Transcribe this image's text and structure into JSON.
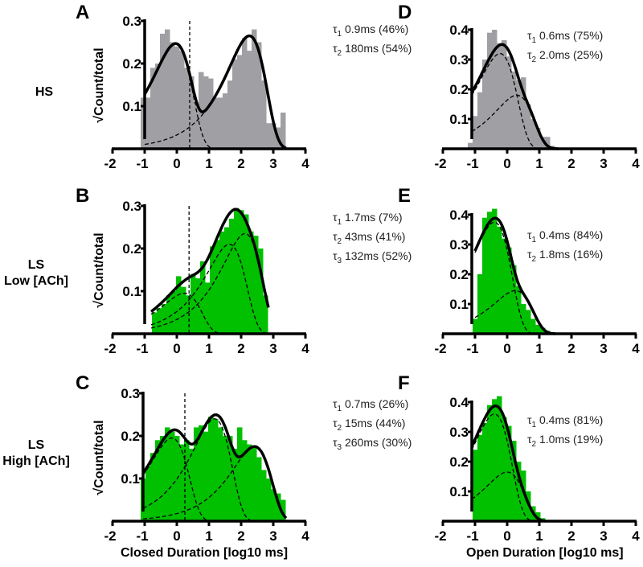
{
  "row_labels": {
    "hs": "HS",
    "ls_low_1": "LS",
    "ls_low_2": "Low [ACh]",
    "ls_high_1": "LS",
    "ls_high_2": "High [ACh]"
  },
  "colors": {
    "hs_bars": "#a0a0a4",
    "ls_bars": "#00c000",
    "fit": "#000000"
  },
  "chart_data": [
    {
      "panel": "A",
      "type": "bar",
      "ylabel": "√Count/total",
      "xlabel": "",
      "xlim": [
        -2,
        4
      ],
      "ylim": [
        0,
        0.3
      ],
      "xticks": [
        "-2",
        "-1",
        "0",
        "1",
        "2",
        "3",
        "4"
      ],
      "yticks": [
        "0.1",
        "0.2",
        "0.3"
      ],
      "bar_color": "#a0a0a4",
      "tcrit_log": 0.4,
      "bins": [
        -1.05,
        -0.9,
        -0.75,
        -0.6,
        -0.45,
        -0.3,
        -0.15,
        0,
        0.15,
        0.3,
        0.45,
        0.6,
        0.75,
        0.9,
        1.05,
        1.2,
        1.35,
        1.5,
        1.65,
        1.8,
        1.95,
        2.1,
        2.25,
        2.4,
        2.55,
        2.7,
        2.85,
        3.0,
        3.15,
        3.3
      ],
      "values": [
        0.12,
        0.12,
        0.19,
        0.2,
        0.27,
        0.28,
        0.25,
        0.24,
        0.23,
        0.19,
        0.17,
        0.1,
        0.18,
        0.17,
        0.165,
        0.12,
        0.12,
        0.13,
        0.16,
        0.21,
        0.22,
        0.26,
        0.23,
        0.28,
        0.25,
        0.16,
        0.06,
        0.06,
        0.05,
        0.085
      ],
      "fit_range": [
        -1.0,
        3.4
      ],
      "components": [
        {
          "label": "τ",
          "sub": "1",
          "tau": "0.9ms",
          "pct": "(46%)",
          "tau_ms": 0.9,
          "peak": 0.245
        },
        {
          "label": "τ",
          "sub": "2",
          "tau": "180ms",
          "pct": "(54%)",
          "tau_ms": 180,
          "peak": 0.265
        }
      ]
    },
    {
      "panel": "B",
      "type": "bar",
      "ylabel": "√Count/total",
      "xlabel": "",
      "xlim": [
        -2,
        4
      ],
      "ylim": [
        0,
        0.3
      ],
      "xticks": [
        "-2",
        "-1",
        "0",
        "1",
        "2",
        "3",
        "4"
      ],
      "yticks": [
        "0.1",
        "0.2",
        "0.3"
      ],
      "bar_color": "#00c000",
      "tcrit_log": 0.38,
      "bins": [
        -0.7,
        -0.55,
        -0.4,
        -0.25,
        -0.1,
        0.05,
        0.2,
        0.35,
        0.5,
        0.65,
        0.8,
        0.95,
        1.1,
        1.25,
        1.4,
        1.55,
        1.7,
        1.85,
        2.0,
        2.15,
        2.3,
        2.45,
        2.6,
        2.75
      ],
      "values": [
        0.05,
        0.06,
        0.07,
        0.09,
        0.1,
        0.135,
        0.11,
        0.09,
        0.14,
        0.13,
        0.17,
        0.12,
        0.205,
        0.22,
        0.24,
        0.25,
        0.27,
        0.295,
        0.29,
        0.28,
        0.24,
        0.23,
        0.2,
        0.09
      ],
      "fit_range": [
        -0.8,
        2.85
      ],
      "components": [
        {
          "label": "τ",
          "sub": "1",
          "tau": "1.7ms",
          "pct": "(7%)",
          "tau_ms": 1.7,
          "peak": 0.095
        },
        {
          "label": "τ",
          "sub": "2",
          "tau": "43ms",
          "pct": "(41%)",
          "tau_ms": 43,
          "peak": 0.21
        },
        {
          "label": "τ",
          "sub": "3",
          "tau": "132ms",
          "pct": "(52%)",
          "tau_ms": 132,
          "peak": 0.235
        }
      ]
    },
    {
      "panel": "C",
      "type": "bar",
      "ylabel": "√Count/total",
      "xlabel": "Closed Duration [log10 ms]",
      "xlim": [
        -2,
        4
      ],
      "ylim": [
        0,
        0.3
      ],
      "xticks": [
        "-2",
        "-1",
        "0",
        "1",
        "2",
        "3",
        "4"
      ],
      "yticks": [
        "0.1",
        "0.2",
        "0.3"
      ],
      "bar_color": "#00c000",
      "tcrit_log": 0.25,
      "bins": [
        -1.05,
        -0.9,
        -0.75,
        -0.6,
        -0.45,
        -0.3,
        -0.15,
        0,
        0.15,
        0.3,
        0.45,
        0.6,
        0.75,
        0.9,
        1.05,
        1.2,
        1.35,
        1.5,
        1.65,
        1.8,
        1.95,
        2.1,
        2.25,
        2.4,
        2.55,
        2.7,
        2.85,
        3.0,
        3.15,
        3.3
      ],
      "values": [
        0.1,
        0.13,
        0.16,
        0.19,
        0.2,
        0.22,
        0.21,
        0.2,
        0.18,
        0.19,
        0.17,
        0.22,
        0.225,
        0.21,
        0.245,
        0.24,
        0.22,
        0.2,
        0.2,
        0.17,
        0.22,
        0.19,
        0.18,
        0.175,
        0.15,
        0.12,
        0.1,
        0.075,
        0.065,
        0.05
      ],
      "fit_range": [
        -1.05,
        3.4
      ],
      "components": [
        {
          "label": "τ",
          "sub": "1",
          "tau": "0.7ms",
          "pct": "(26%)",
          "tau_ms": 0.7,
          "peak": 0.195
        },
        {
          "label": "τ",
          "sub": "2",
          "tau": "15ms",
          "pct": "(44%)",
          "tau_ms": 15,
          "peak": 0.24
        },
        {
          "label": "τ",
          "sub": "3",
          "tau": "260ms",
          "pct": "(30%)",
          "tau_ms": 260,
          "peak": 0.175
        }
      ]
    },
    {
      "panel": "D",
      "type": "bar",
      "ylabel": "",
      "xlabel": "",
      "xlim": [
        -2,
        4
      ],
      "ylim": [
        0,
        0.4
      ],
      "xticks": [
        "-2",
        "-1",
        "0",
        "1",
        "2",
        "3",
        "4"
      ],
      "yticks": [
        "0.1",
        "0.2",
        "0.3",
        "0.4"
      ],
      "bar_color": "#a0a0a4",
      "bins": [
        -1.15,
        -1.0,
        -0.85,
        -0.7,
        -0.55,
        -0.4,
        -0.25,
        -0.1,
        0.05,
        0.2,
        0.35,
        0.5,
        0.65,
        0.8,
        0.95,
        1.1,
        1.25,
        1.4
      ],
      "values": [
        0.02,
        0.11,
        0.19,
        0.3,
        0.39,
        0.4,
        0.355,
        0.365,
        0.31,
        0.26,
        0.23,
        0.24,
        0.15,
        0.1,
        0.07,
        0.04,
        0.04,
        0.01
      ],
      "fit_range": [
        -1.1,
        1.6
      ],
      "components": [
        {
          "label": "τ",
          "sub": "1",
          "tau": "0.6ms",
          "pct": "(75%)",
          "tau_ms": 0.6,
          "peak": 0.32
        },
        {
          "label": "τ",
          "sub": "2",
          "tau": "2.0ms",
          "pct": "(25%)",
          "tau_ms": 2.0,
          "peak": 0.18
        }
      ]
    },
    {
      "panel": "E",
      "type": "bar",
      "ylabel": "",
      "xlabel": "",
      "xlim": [
        -2,
        4
      ],
      "ylim": [
        0,
        0.4
      ],
      "xticks": [
        "-2",
        "-1",
        "0",
        "1",
        "2",
        "3",
        "4"
      ],
      "yticks": [
        "0.1",
        "0.2",
        "0.3",
        "0.4"
      ],
      "bar_color": "#00c000",
      "bins": [
        -1.0,
        -0.85,
        -0.7,
        -0.55,
        -0.4,
        -0.25,
        -0.1,
        0.05,
        0.2,
        0.35,
        0.5,
        0.65,
        0.8,
        0.95,
        1.1,
        1.25
      ],
      "values": [
        0.05,
        0.2,
        0.39,
        0.41,
        0.42,
        0.36,
        0.32,
        0.29,
        0.23,
        0.16,
        0.1,
        0.08,
        0.05,
        0.03,
        0.02,
        0.01
      ],
      "fit_range": [
        -1.0,
        1.5
      ],
      "components": [
        {
          "label": "τ",
          "sub": "1",
          "tau": "0.4ms",
          "pct": "(84%)",
          "tau_ms": 0.4,
          "peak": 0.375
        },
        {
          "label": "τ",
          "sub": "2",
          "tau": "1.8ms",
          "pct": "(16%)",
          "tau_ms": 1.8,
          "peak": 0.145
        }
      ]
    },
    {
      "panel": "F",
      "type": "bar",
      "ylabel": "",
      "xlabel": "Open Duration [log10 ms]",
      "xlim": [
        -2,
        4
      ],
      "ylim": [
        0,
        0.4
      ],
      "xticks": [
        "-2",
        "-1",
        "0",
        "1",
        "2",
        "3",
        "4"
      ],
      "yticks": [
        "0.1",
        "0.2",
        "0.3",
        "0.4"
      ],
      "bar_color": "#00c000",
      "bins": [
        -1.0,
        -0.85,
        -0.7,
        -0.55,
        -0.4,
        -0.25,
        -0.1,
        0.05,
        0.2,
        0.35,
        0.5,
        0.65,
        0.8,
        0.95,
        1.1
      ],
      "values": [
        0.24,
        0.29,
        0.33,
        0.39,
        0.41,
        0.42,
        0.35,
        0.32,
        0.27,
        0.2,
        0.17,
        0.1,
        0.05,
        0.03,
        0.01
      ],
      "fit_range": [
        -1.1,
        1.2
      ],
      "components": [
        {
          "label": "τ",
          "sub": "1",
          "tau": "0.4ms",
          "pct": "(81%)",
          "tau_ms": 0.4,
          "peak": 0.36
        },
        {
          "label": "τ",
          "sub": "2",
          "tau": "1.0ms",
          "pct": "(19%)",
          "tau_ms": 1.0,
          "peak": 0.165
        }
      ]
    }
  ]
}
